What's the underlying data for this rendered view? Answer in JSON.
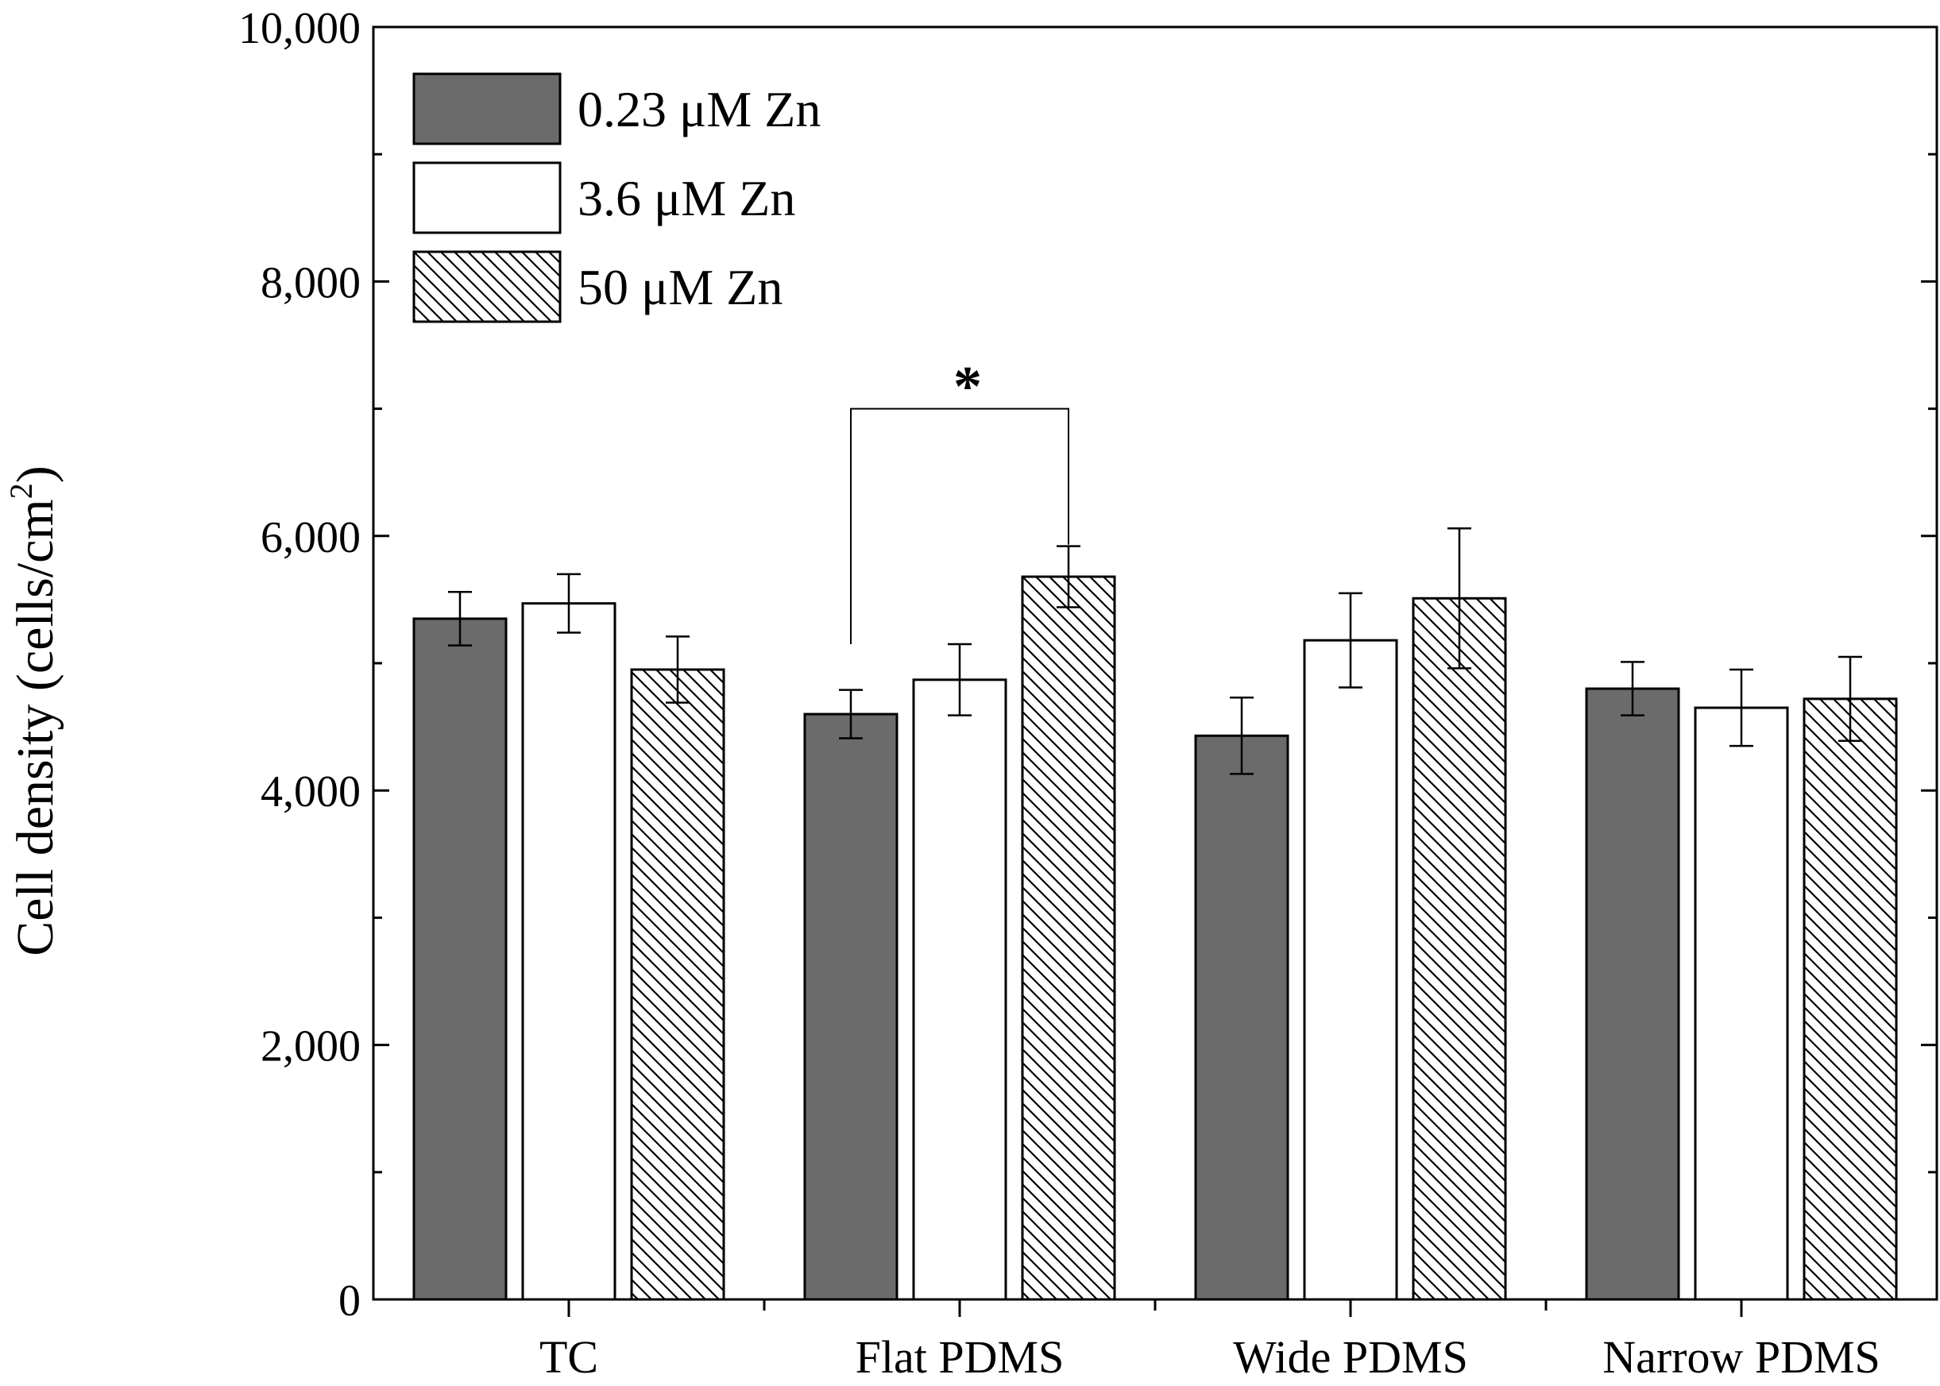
{
  "chart_data": {
    "type": "bar",
    "title": "",
    "xlabel": "",
    "ylabel": "Cell density (cells/cm",
    "ylabel_superscript": "2",
    "ylabel_close": ")",
    "ylim": [
      0,
      10000
    ],
    "yticks": [
      "0",
      "2,000",
      "4,000",
      "6,000",
      "8,000",
      "10,000"
    ],
    "ytick_values": [
      0,
      2000,
      4000,
      6000,
      8000,
      10000
    ],
    "categories": [
      "TC",
      "Flat PDMS",
      "Wide PDMS",
      "Narrow PDMS"
    ],
    "legend_position": "top-left",
    "series": [
      {
        "name": "0.23 μM Zn",
        "style": "solid-gray",
        "color": "#6b6b6b",
        "values": [
          5350,
          4600,
          4430,
          4800
        ],
        "errors": [
          210,
          190,
          300,
          210
        ]
      },
      {
        "name": "3.6 μM Zn",
        "style": "white",
        "color": "#ffffff",
        "values": [
          5470,
          4870,
          5180,
          4650
        ],
        "errors": [
          230,
          280,
          370,
          300
        ]
      },
      {
        "name": "50 μM Zn",
        "style": "hatched",
        "color": "#ffffff",
        "values": [
          4950,
          5680,
          5510,
          4720
        ],
        "errors": [
          260,
          240,
          550,
          330
        ]
      }
    ],
    "annotations": [
      {
        "text": "*",
        "type": "significance-bracket",
        "category": "Flat PDMS",
        "from_series": 0,
        "to_series": 2
      }
    ]
  }
}
